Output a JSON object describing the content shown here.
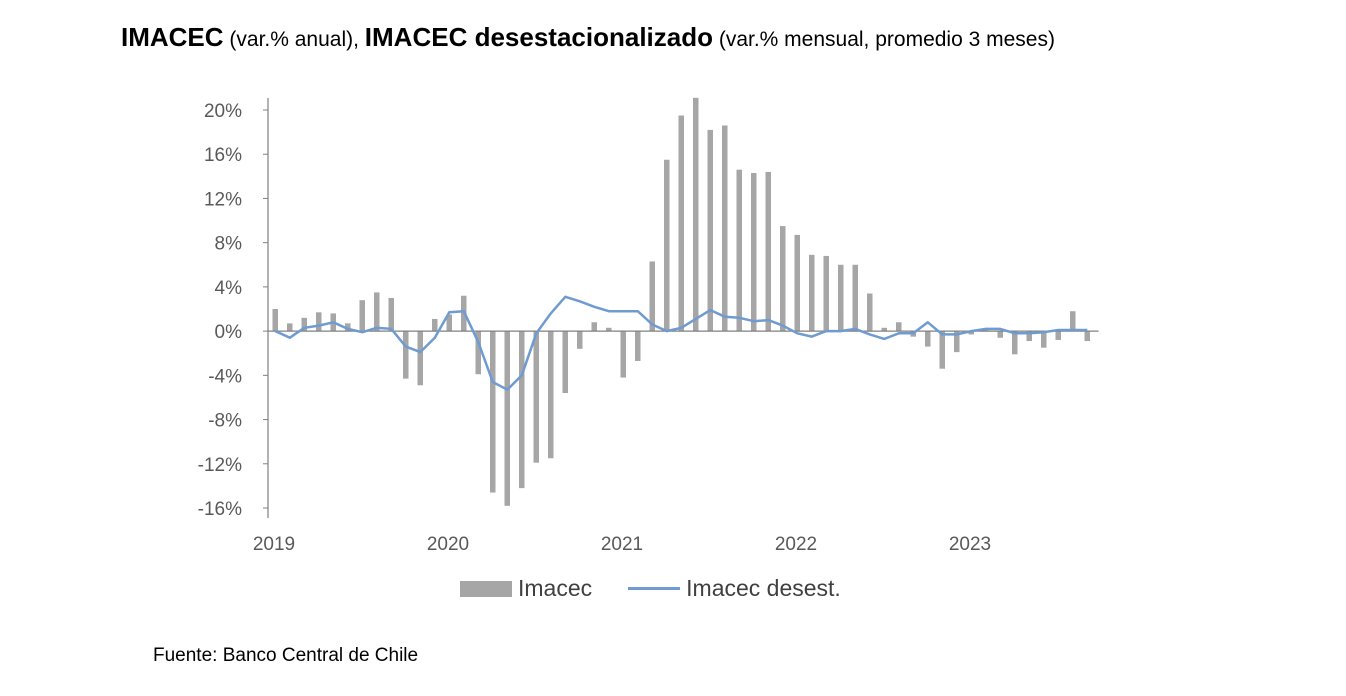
{
  "title": {
    "part1_bold": "IMACEC",
    "part1_rest": " (var.% anual), ",
    "part2_bold": "IMACEC desestacionalizado",
    "part2_rest": " (var.% mensual, promedio 3 meses)"
  },
  "source": "Fuente: Banco Central de Chile",
  "colors": {
    "bars": "#a6a6a6",
    "line": "#6f9bd1",
    "axis": "#808080",
    "text": "#595959"
  },
  "chart_data": {
    "type": "bar",
    "x_start": "2019-01",
    "x_tick_labels": [
      "2019",
      "2020",
      "2021",
      "2022",
      "2023"
    ],
    "y_ticks": [
      -16,
      -12,
      -8,
      -4,
      0,
      4,
      8,
      12,
      16,
      20
    ],
    "y_tick_labels": [
      "-16%",
      "-12%",
      "-8%",
      "-4%",
      "0%",
      "4%",
      "8%",
      "12%",
      "16%",
      "20%"
    ],
    "ylim": [
      -16,
      20
    ],
    "grid": false,
    "legend_position": "bottom",
    "series": [
      {
        "name": "Imacec",
        "type": "bar",
        "values": [
          2.0,
          0.7,
          1.2,
          1.7,
          1.6,
          0.7,
          2.8,
          3.5,
          3.0,
          -4.3,
          -4.9,
          1.1,
          1.5,
          3.2,
          -3.9,
          -14.6,
          -15.8,
          -14.2,
          -11.9,
          -11.5,
          -5.6,
          -1.6,
          0.8,
          0.3,
          -4.2,
          -2.7,
          6.3,
          15.5,
          19.5,
          21.1,
          18.2,
          18.6,
          14.6,
          14.3,
          14.4,
          9.5,
          8.7,
          6.9,
          6.8,
          6.0,
          6.0,
          3.4,
          0.3,
          0.8,
          -0.5,
          -1.4,
          -3.4,
          -1.9,
          -0.3,
          0.2,
          -0.6,
          -2.1,
          -0.9,
          -1.5,
          -0.8,
          1.8,
          -0.9
        ]
      },
      {
        "name": "Imacec desest.",
        "type": "line",
        "values": [
          0.0,
          -0.6,
          0.3,
          0.5,
          0.8,
          0.2,
          -0.1,
          0.3,
          0.2,
          -1.4,
          -1.9,
          -0.6,
          1.7,
          1.8,
          -1.0,
          -4.6,
          -5.3,
          -4.0,
          -0.2,
          1.6,
          3.1,
          2.7,
          2.2,
          1.8,
          1.8,
          1.8,
          0.6,
          0.0,
          0.3,
          1.1,
          1.9,
          1.3,
          1.2,
          0.9,
          1.0,
          0.5,
          -0.2,
          -0.5,
          0.0,
          0.0,
          0.2,
          -0.3,
          -0.7,
          -0.2,
          -0.2,
          0.8,
          -0.3,
          -0.3,
          0.0,
          0.2,
          0.2,
          -0.2,
          -0.2,
          -0.1,
          0.1,
          0.1,
          0.1
        ]
      }
    ]
  }
}
